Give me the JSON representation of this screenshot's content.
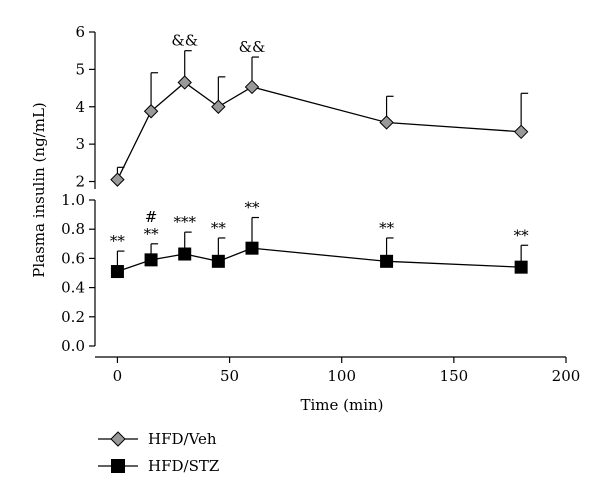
{
  "chart_data": {
    "type": "line",
    "xlabel": "Time (min)",
    "ylabel": "Plasma insulin (ng/mL)",
    "x_ticks": [
      "0",
      "50",
      "100",
      "150",
      "200"
    ],
    "xlim": [
      -10,
      200
    ],
    "panels": [
      {
        "ylim": [
          1.8,
          6
        ],
        "y_ticks": [
          "2",
          "3",
          "4",
          "5",
          "6"
        ],
        "series_index": 0
      },
      {
        "ylim": [
          0,
          1.0
        ],
        "y_ticks": [
          "0.0",
          "0.2",
          "0.4",
          "0.6",
          "0.8",
          "1.0"
        ],
        "series_index": 1
      }
    ],
    "series": [
      {
        "name": "HFD/Veh",
        "marker": "diamond",
        "color": "#999999",
        "x": [
          0,
          15,
          30,
          45,
          60,
          120,
          180
        ],
        "y": [
          2.05,
          3.88,
          4.65,
          4.0,
          4.53,
          3.58,
          3.33
        ],
        "err": [
          0.33,
          1.03,
          0.85,
          0.8,
          0.8,
          0.7,
          1.03
        ],
        "annotations": [
          "",
          "",
          "&&",
          "",
          "&&",
          "",
          ""
        ]
      },
      {
        "name": "HFD/STZ",
        "marker": "square",
        "color": "#000000",
        "x": [
          0,
          15,
          30,
          45,
          60,
          120,
          180
        ],
        "y": [
          0.51,
          0.59,
          0.63,
          0.58,
          0.67,
          0.58,
          0.54
        ],
        "err": [
          0.14,
          0.11,
          0.15,
          0.16,
          0.21,
          0.16,
          0.15
        ],
        "annotations": [
          "**",
          "**",
          "***",
          "**",
          "**",
          "**",
          "**"
        ],
        "annotations_top": [
          "",
          "#",
          "",
          "",
          "",
          "",
          ""
        ]
      }
    ]
  }
}
